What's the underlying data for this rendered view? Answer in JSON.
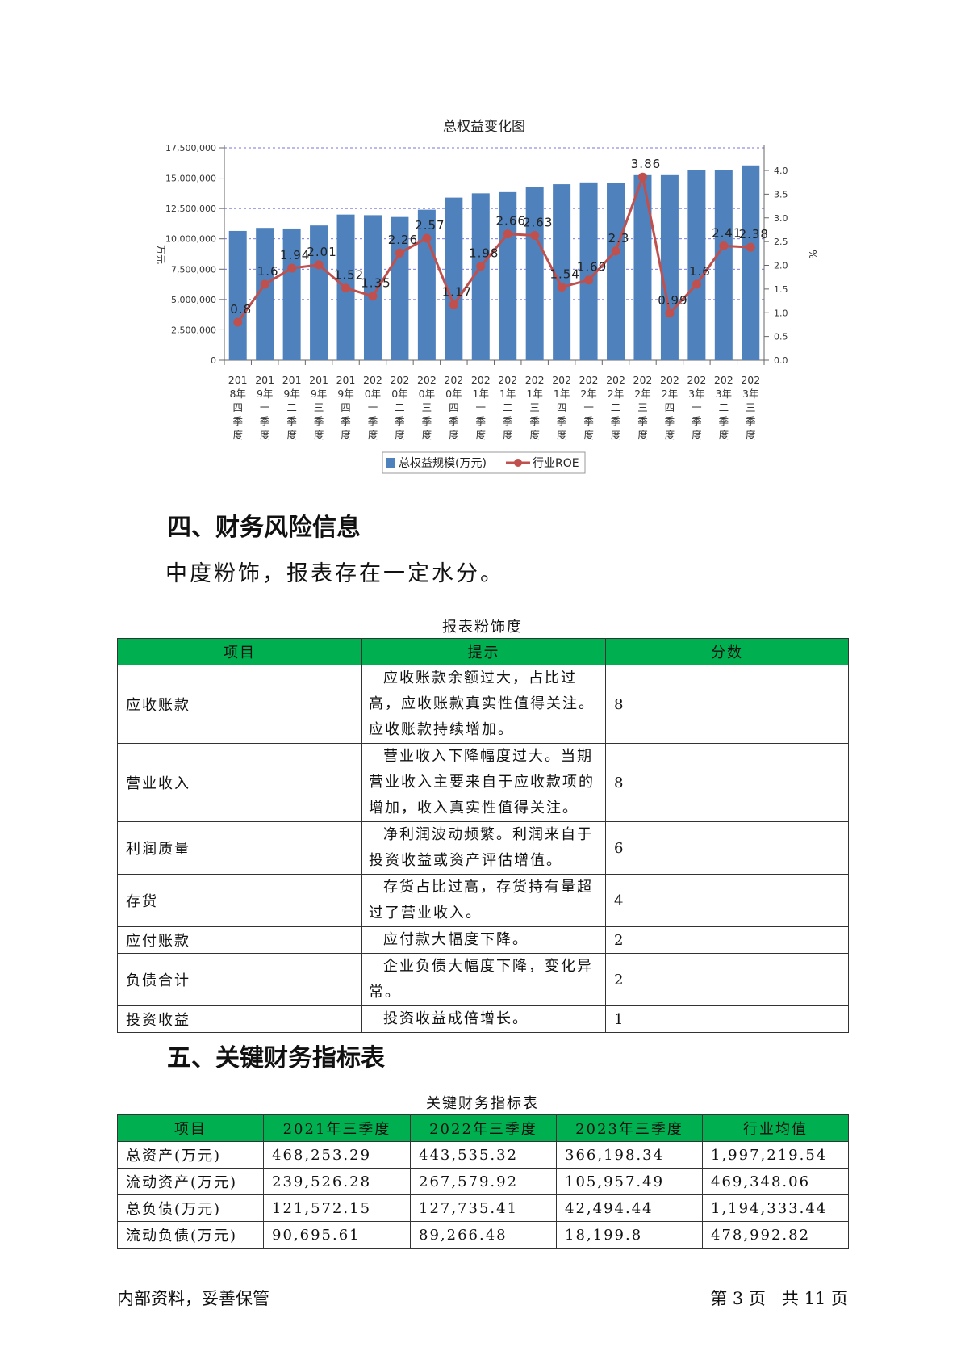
{
  "chart_data": {
    "type": "bar+line",
    "title": "总权益变化图",
    "ylabel_left": "万元",
    "ylabel_right": "%",
    "left_axis": {
      "ylim": [
        0,
        17500000
      ],
      "ticks": [
        "0",
        "2,500,000",
        "5,000,000",
        "7,500,000",
        "10,000,000",
        "12,500,000",
        "15,000,000",
        "17,500,000"
      ]
    },
    "right_axis": {
      "ylim": [
        0,
        4.0
      ],
      "ticks": [
        "0.0",
        "0.5",
        "1.0",
        "1.5",
        "2.0",
        "2.5",
        "3.0",
        "3.5",
        "4.0"
      ]
    },
    "categories": [
      [
        "201",
        "8年",
        "四",
        "季",
        "度"
      ],
      [
        "201",
        "9年",
        "一",
        "季",
        "度"
      ],
      [
        "201",
        "9年",
        "二",
        "季",
        "度"
      ],
      [
        "201",
        "9年",
        "三",
        "季",
        "度"
      ],
      [
        "201",
        "9年",
        "四",
        "季",
        "度"
      ],
      [
        "202",
        "0年",
        "一",
        "季",
        "度"
      ],
      [
        "202",
        "0年",
        "二",
        "季",
        "度"
      ],
      [
        "202",
        "0年",
        "三",
        "季",
        "度"
      ],
      [
        "202",
        "0年",
        "四",
        "季",
        "度"
      ],
      [
        "202",
        "1年",
        "一",
        "季",
        "度"
      ],
      [
        "202",
        "1年",
        "二",
        "季",
        "度"
      ],
      [
        "202",
        "1年",
        "三",
        "季",
        "度"
      ],
      [
        "202",
        "1年",
        "四",
        "季",
        "度"
      ],
      [
        "202",
        "2年",
        "一",
        "季",
        "度"
      ],
      [
        "202",
        "2年",
        "二",
        "季",
        "度"
      ],
      [
        "202",
        "2年",
        "三",
        "季",
        "度"
      ],
      [
        "202",
        "2年",
        "四",
        "季",
        "度"
      ],
      [
        "202",
        "3年",
        "一",
        "季",
        "度"
      ],
      [
        "202",
        "3年",
        "二",
        "季",
        "度"
      ],
      [
        "202",
        "3年",
        "三",
        "季",
        "度"
      ]
    ],
    "series": [
      {
        "name": "总权益规模(万元)",
        "type": "bar",
        "axis": "left",
        "color": "#4f81bd",
        "values": [
          10650000,
          10900000,
          10850000,
          11100000,
          12000000,
          11950000,
          11800000,
          12400000,
          13400000,
          13750000,
          13850000,
          14250000,
          14500000,
          14650000,
          14600000,
          15250000,
          15250000,
          15700000,
          15650000,
          16050000
        ]
      },
      {
        "name": "行业ROE",
        "type": "line",
        "axis": "right",
        "color": "#c0504d",
        "values": [
          0.8,
          1.6,
          1.94,
          2.01,
          1.52,
          1.35,
          2.26,
          2.57,
          1.17,
          1.98,
          2.66,
          2.63,
          1.54,
          1.69,
          2.3,
          3.86,
          0.99,
          1.6,
          2.41,
          2.38
        ],
        "labels": [
          "0.8",
          "1.6",
          "1.94",
          "2.01",
          "1.52",
          "1.35",
          "2.26",
          "2.57",
          "1.17",
          "1.98",
          "2.66",
          "2.63",
          "1.54",
          "1.69",
          "2.3",
          "3.86",
          "0.99",
          "1.6",
          "2.41",
          "2.38"
        ]
      }
    ],
    "grid": true,
    "legend_position": "bottom"
  },
  "section4": {
    "heading": "四、财务风险信息",
    "paragraph": "中度粉饰，报表存在一定水分。",
    "table_caption": "报表粉饰度",
    "headers": [
      "项目",
      "提示",
      "分数"
    ],
    "rows": [
      {
        "item": "应收账款",
        "tip": "应收账款余额过大，占比过高，应收账款真实性值得关注。应收账款持续增加。",
        "score": "8"
      },
      {
        "item": "营业收入",
        "tip": "营业收入下降幅度过大。当期营业收入主要来自于应收款项的增加，收入真实性值得关注。",
        "score": "8"
      },
      {
        "item": "利润质量",
        "tip": "净利润波动频繁。利润来自于投资收益或资产评估增值。",
        "score": "6"
      },
      {
        "item": "存货",
        "tip": "存货占比过高，存货持有量超过了营业收入。",
        "score": "4"
      },
      {
        "item": "应付账款",
        "tip": "应付款大幅度下降。",
        "score": "2"
      },
      {
        "item": "负债合计",
        "tip": "企业负债大幅度下降，变化异常。",
        "score": "2"
      },
      {
        "item": "投资收益",
        "tip": "投资收益成倍增长。",
        "score": "1"
      }
    ]
  },
  "section5": {
    "heading": "五、关键财务指标表",
    "table_caption": "关键财务指标表",
    "headers": [
      "项目",
      "2021年三季度",
      "2022年三季度",
      "2023年三季度",
      "行业均值"
    ],
    "rows": [
      {
        "item": "总资产(万元)",
        "v2021": "468,253.29",
        "v2022": "443,535.32",
        "v2023": "366,198.34",
        "avg": "1,997,219.54"
      },
      {
        "item": "流动资产(万元)",
        "v2021": "239,526.28",
        "v2022": "267,579.92",
        "v2023": "105,957.49",
        "avg": "469,348.06"
      },
      {
        "item": "总负债(万元)",
        "v2021": "121,572.15",
        "v2022": "127,735.41",
        "v2023": "42,494.44",
        "avg": "1,194,333.44"
      },
      {
        "item": "流动负债(万元)",
        "v2021": "90,695.61",
        "v2022": "89,266.48",
        "v2023": "18,199.8",
        "avg": "478,992.82"
      }
    ]
  },
  "footer": {
    "left": "内部资料，妥善保管",
    "right": "第 3 页   共 11 页"
  }
}
